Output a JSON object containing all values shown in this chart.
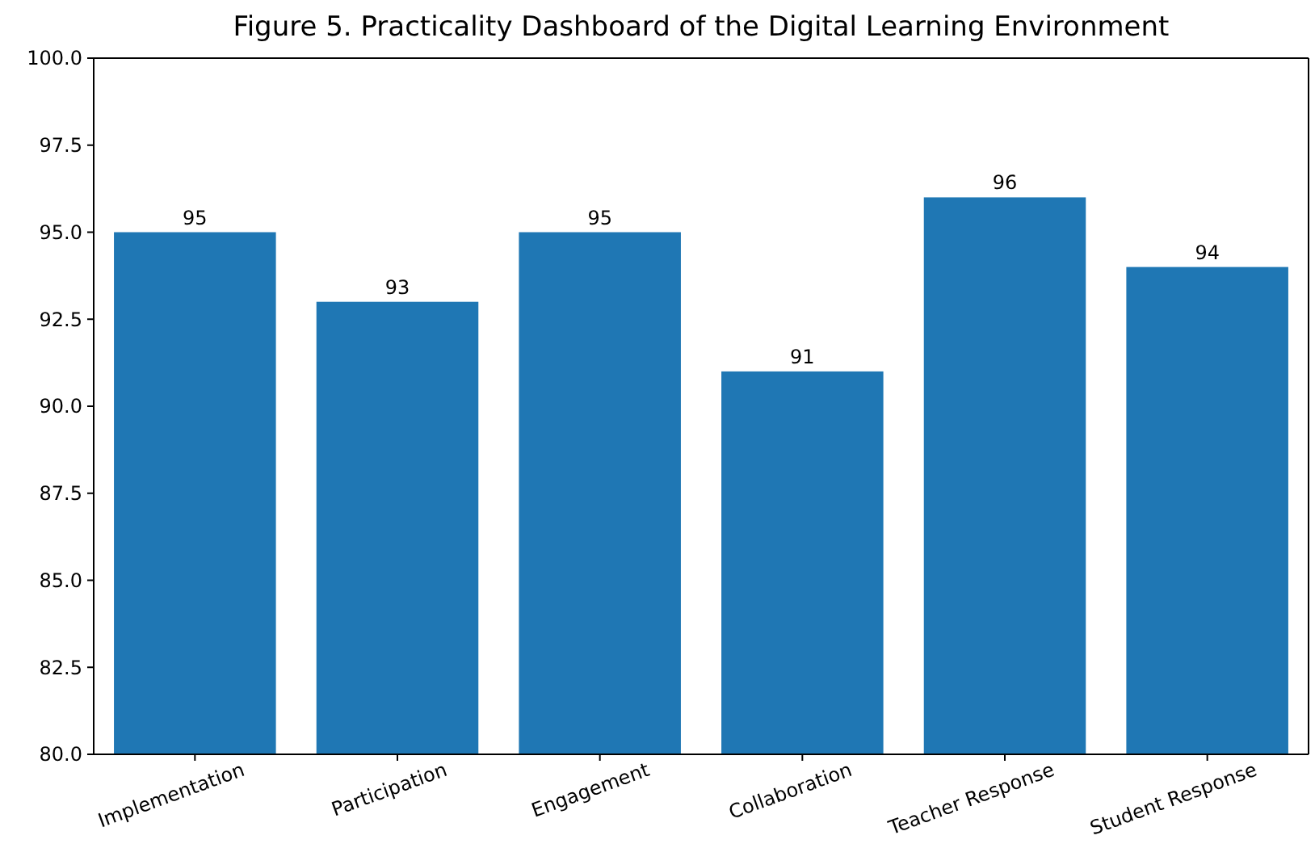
{
  "chart_data": {
    "type": "bar",
    "title": "Figure 5. Practicality Dashboard of the Digital Learning Environment",
    "categories": [
      "Implementation",
      "Participation",
      "Engagement",
      "Collaboration",
      "Teacher Response",
      "Student Response"
    ],
    "values": [
      95,
      93,
      95,
      91,
      96,
      94
    ],
    "color": "#1f77b4",
    "ylim": [
      80,
      100
    ],
    "yticks": [
      {
        "value": 80,
        "label": "80.0"
      },
      {
        "value": 82.5,
        "label": "82.5"
      },
      {
        "value": 85,
        "label": "85.0"
      },
      {
        "value": 87.5,
        "label": "87.5"
      },
      {
        "value": 90,
        "label": "90.0"
      },
      {
        "value": 92.5,
        "label": "92.5"
      },
      {
        "value": 95,
        "label": "95.0"
      },
      {
        "value": 97.5,
        "label": "97.5"
      },
      {
        "value": 100,
        "label": "100.0"
      }
    ],
    "data_labels": true,
    "grid": false
  }
}
